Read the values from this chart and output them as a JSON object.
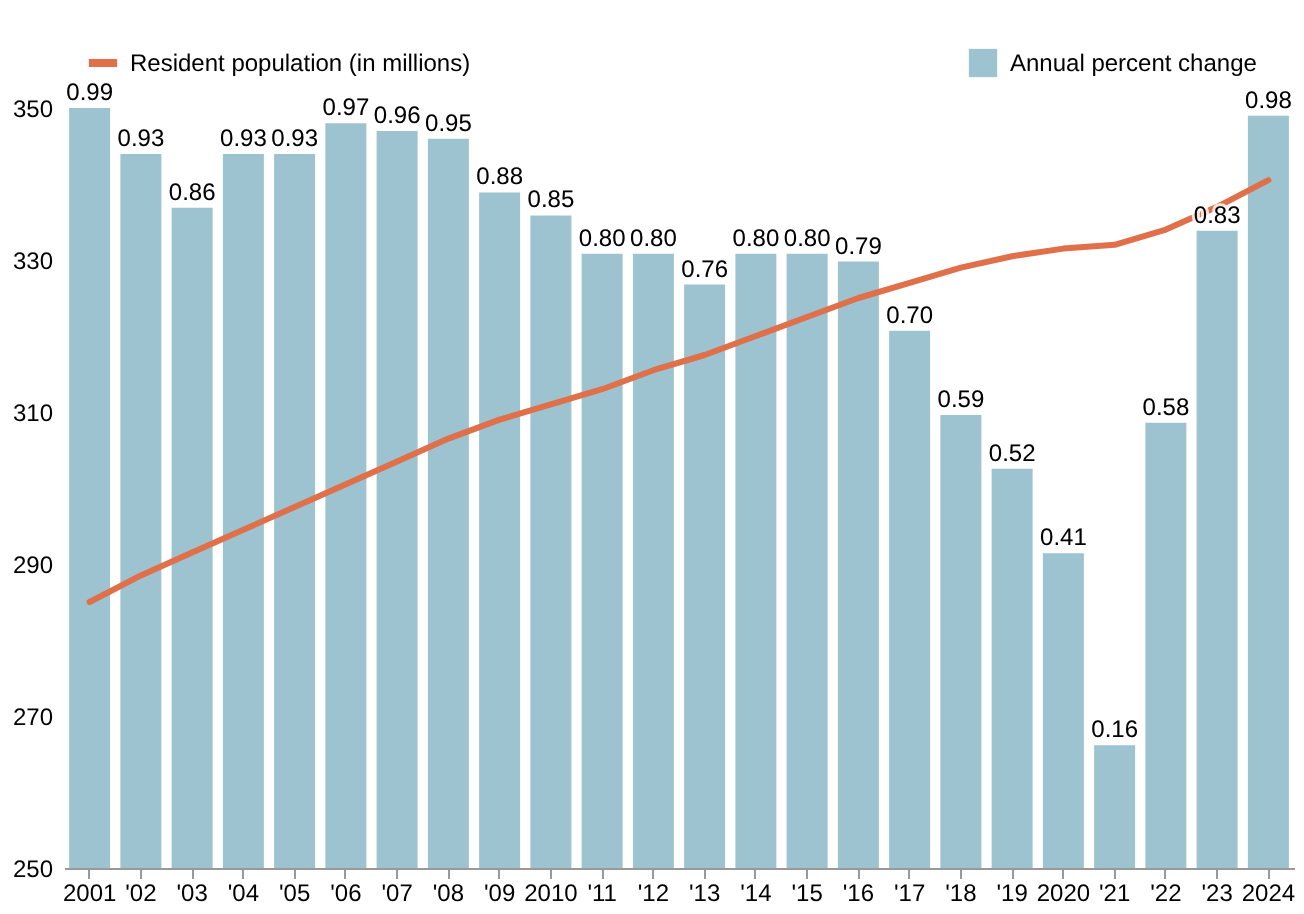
{
  "chart_data": {
    "type": "bar",
    "categories": [
      "2001",
      "'02",
      "'03",
      "'04",
      "'05",
      "'06",
      "'07",
      "'08",
      "'09",
      "2010",
      "'11",
      "'12",
      "'13",
      "'14",
      "'15",
      "'16",
      "'17",
      "'18",
      "'19",
      "2020",
      "'21",
      "'22",
      "'23",
      "2024"
    ],
    "series": [
      {
        "name": "Annual percent change",
        "axis": "y2",
        "color": "#9cc3cf",
        "values": [
          0.99,
          0.93,
          0.86,
          0.93,
          0.93,
          0.97,
          0.96,
          0.95,
          0.88,
          0.85,
          0.8,
          0.8,
          0.76,
          0.8,
          0.8,
          0.79,
          0.7,
          0.59,
          0.52,
          0.41,
          0.16,
          0.58,
          0.83,
          0.98
        ],
        "value_labels": [
          "0.99",
          "0.93",
          "0.86",
          "0.93",
          "0.93",
          "0.97",
          "0.96",
          "0.95",
          "0.88",
          "0.85",
          "0.80",
          "0.80",
          "0.76",
          "0.80",
          "0.80",
          "0.79",
          "0.70",
          "0.59",
          "0.52",
          "0.41",
          "0.16",
          "0.58",
          "0.83",
          "0.98"
        ]
      },
      {
        "name": "Resident population (in millions)",
        "type": "line",
        "color": "#e0704a",
        "values": [
          285,
          288.5,
          291.5,
          294.5,
          297.5,
          300.5,
          303.5,
          306.5,
          309,
          311,
          313,
          315.5,
          317.5,
          320,
          322.5,
          325,
          327,
          329,
          330.5,
          331.5,
          332,
          334,
          337,
          340.5
        ]
      }
    ],
    "ylim": [
      250,
      350
    ],
    "yticks": [
      250,
      270,
      290,
      310,
      330,
      350
    ],
    "legend": "top",
    "grid": false
  }
}
